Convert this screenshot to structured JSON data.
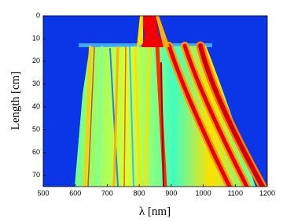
{
  "chart_data": {
    "type": "heatmap",
    "x_label": "λ [nm]",
    "y_label": "Length [cm]",
    "xlim": [
      500,
      1200
    ],
    "xticks": [
      500,
      600,
      700,
      800,
      900,
      1000,
      1100,
      1200
    ],
    "ylim": [
      75,
      0
    ],
    "yticks": [
      0,
      10,
      20,
      30,
      40,
      50,
      60,
      70
    ]
  }
}
